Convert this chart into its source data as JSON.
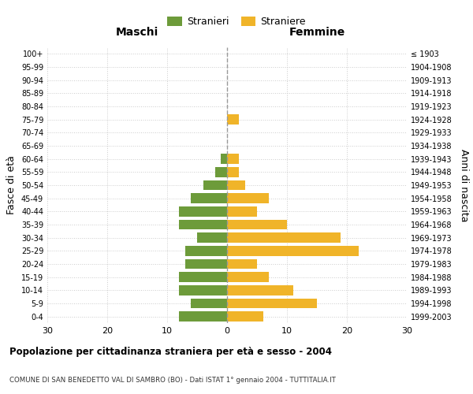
{
  "age_groups_bottom_to_top": [
    "0-4",
    "5-9",
    "10-14",
    "15-19",
    "20-24",
    "25-29",
    "30-34",
    "35-39",
    "40-44",
    "45-49",
    "50-54",
    "55-59",
    "60-64",
    "65-69",
    "70-74",
    "75-79",
    "80-84",
    "85-89",
    "90-94",
    "95-99",
    "100+"
  ],
  "birth_years_bottom_to_top": [
    "1999-2003",
    "1994-1998",
    "1989-1993",
    "1984-1988",
    "1979-1983",
    "1974-1978",
    "1969-1973",
    "1964-1968",
    "1959-1963",
    "1954-1958",
    "1949-1953",
    "1944-1948",
    "1939-1943",
    "1934-1938",
    "1929-1933",
    "1924-1928",
    "1919-1923",
    "1914-1918",
    "1909-1913",
    "1904-1908",
    "≤ 1903"
  ],
  "males_bottom_to_top": [
    8,
    6,
    8,
    8,
    7,
    7,
    5,
    8,
    8,
    6,
    4,
    2,
    1,
    0,
    0,
    0,
    0,
    0,
    0,
    0,
    0
  ],
  "females_bottom_to_top": [
    6,
    15,
    11,
    7,
    5,
    22,
    19,
    10,
    5,
    7,
    3,
    2,
    2,
    0,
    0,
    2,
    0,
    0,
    0,
    0,
    0
  ],
  "male_color": "#6d9b3a",
  "female_color": "#f0b429",
  "xlim": 30,
  "title": "Popolazione per cittadinanza straniera per età e sesso - 2004",
  "subtitle": "COMUNE DI SAN BENEDETTO VAL DI SAMBRO (BO) - Dati ISTAT 1° gennaio 2004 - TUTTITALIA.IT",
  "ylabel_left": "Fasce di età",
  "ylabel_right": "Anni di nascita",
  "legend_male": "Stranieri",
  "legend_female": "Straniere",
  "maschi_label": "Maschi",
  "femmine_label": "Femmine",
  "bg_color": "#ffffff",
  "grid_color": "#cccccc",
  "bar_height": 0.75
}
